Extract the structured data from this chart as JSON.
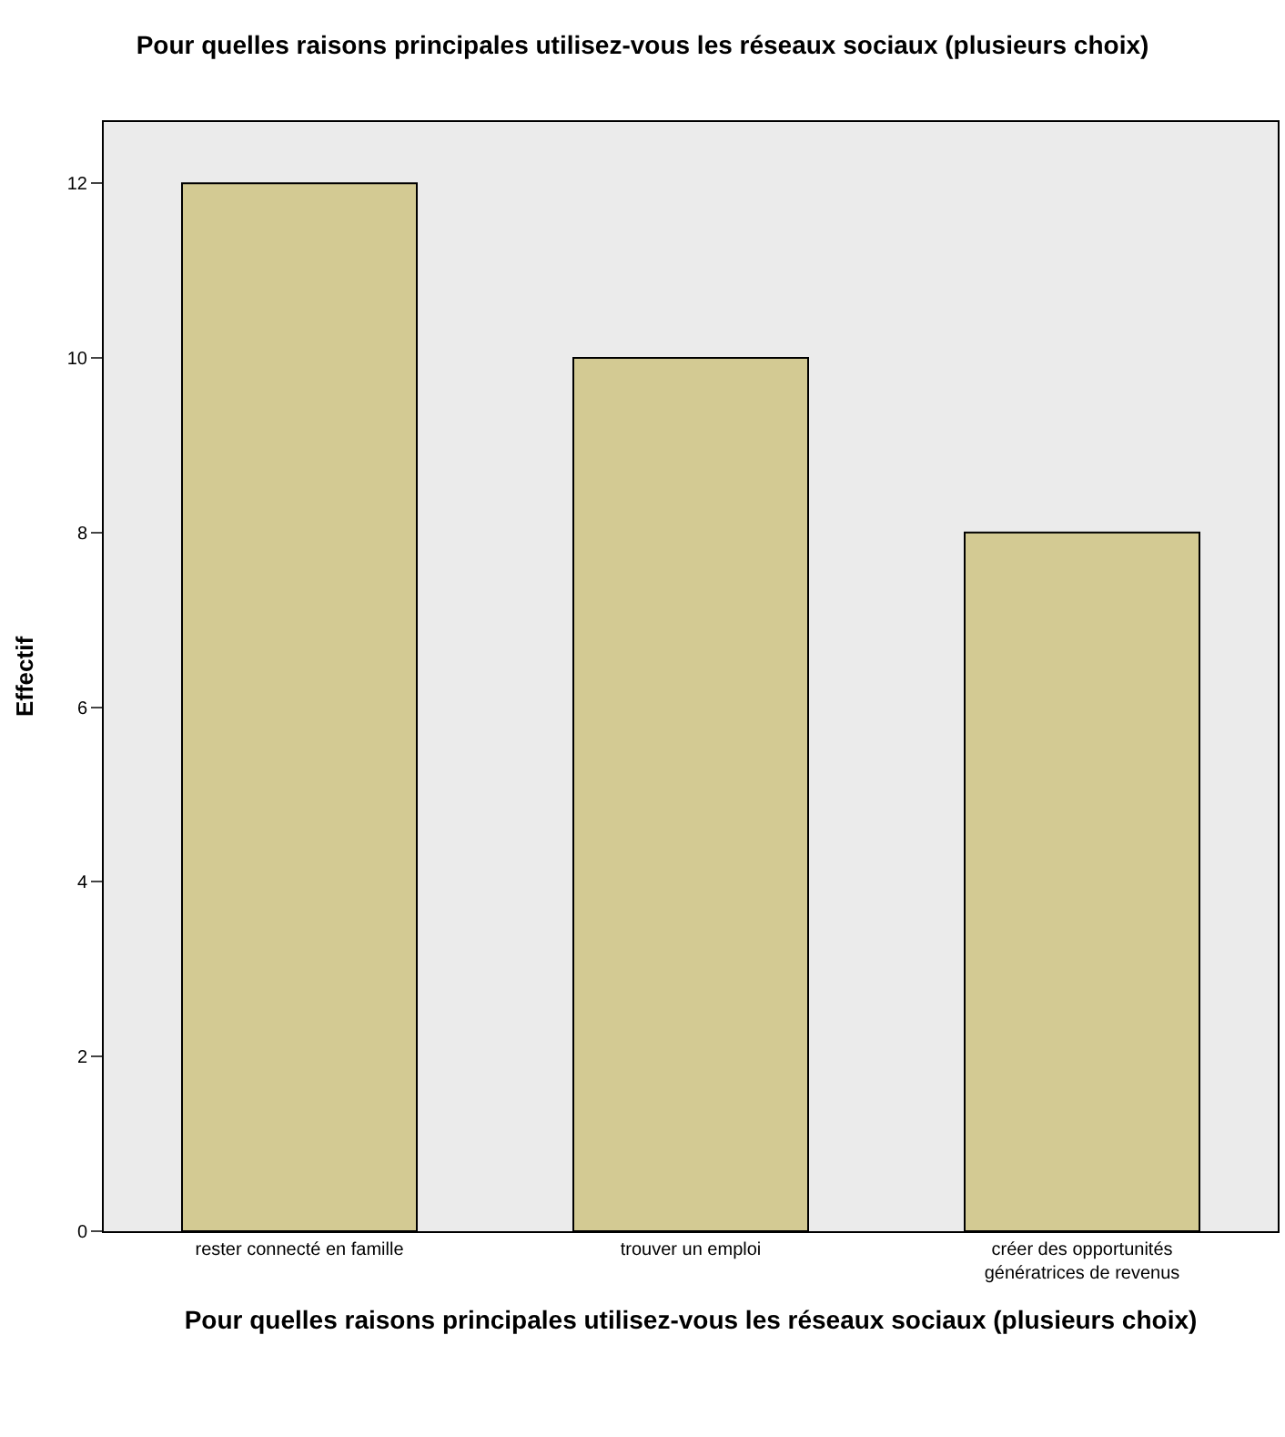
{
  "chart_data": {
    "type": "bar",
    "title": "Pour quelles raisons principales utilisez-vous les réseaux sociaux (plusieurs choix)",
    "xlabel": "Pour quelles raisons principales utilisez-vous les réseaux sociaux (plusieurs choix)",
    "ylabel": "Effectif",
    "categories": [
      "rester connecté en famille",
      "trouver un emploi",
      "créer des opportunités\ngénératrices de revenus"
    ],
    "values": [
      12,
      10,
      8
    ],
    "color": "#d3ca93",
    "ylim": [
      0,
      12.7
    ],
    "yticks": [
      0,
      2,
      4,
      6,
      8,
      10,
      12
    ],
    "grid": false
  }
}
